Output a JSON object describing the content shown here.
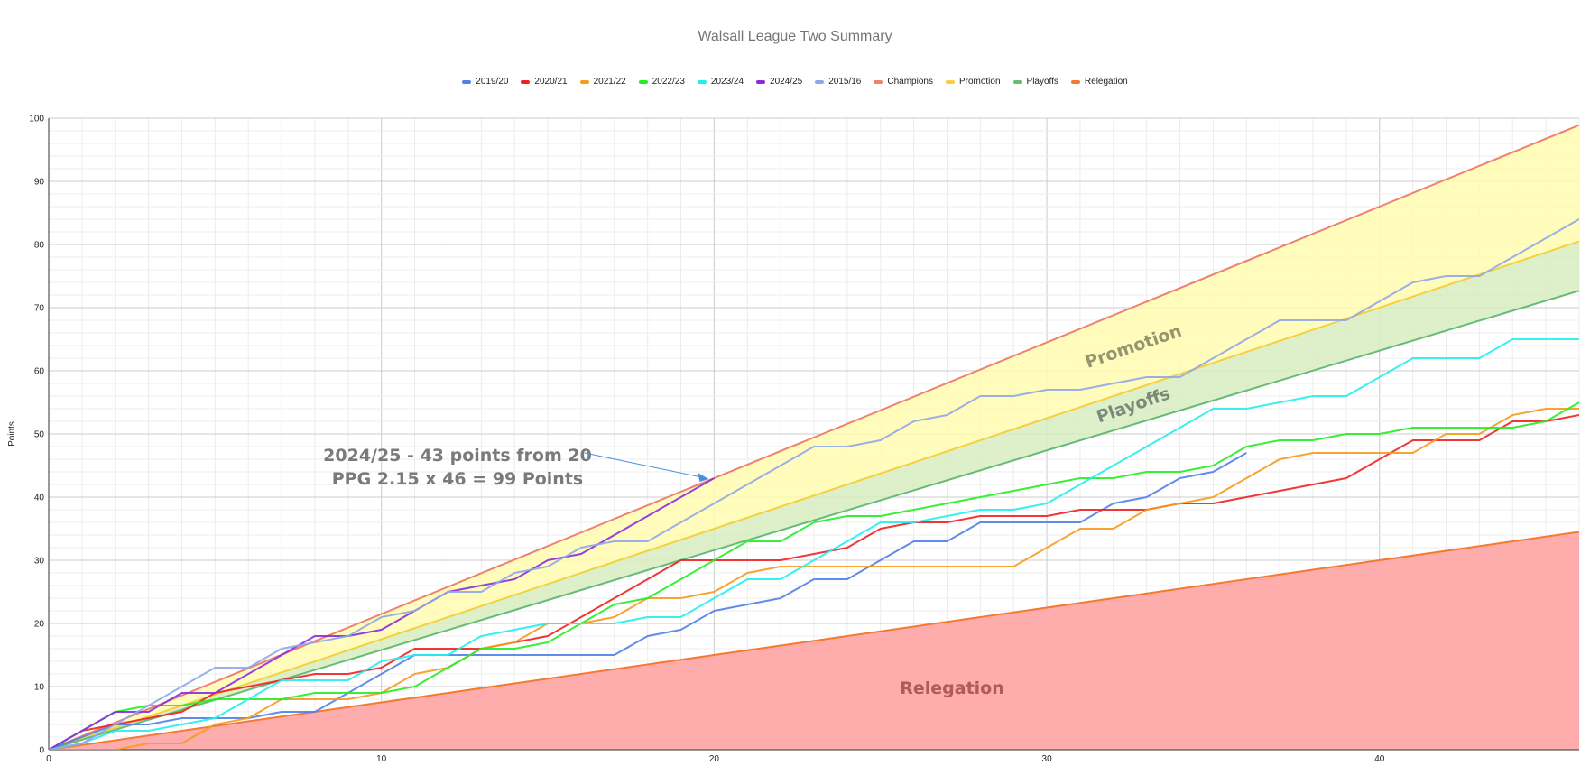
{
  "chart_data": {
    "type": "line",
    "title": "Walsall League Two Summary",
    "ylabel": "Points",
    "xlabel": "",
    "xlim": [
      0,
      46
    ],
    "ylim": [
      0,
      100
    ],
    "x_ticks": [
      0,
      10,
      20,
      30,
      40
    ],
    "y_ticks": [
      0,
      10,
      20,
      30,
      40,
      50,
      60,
      70,
      80,
      90,
      100
    ],
    "grid": true,
    "legend_position": "top",
    "series": [
      {
        "name": "2019/20",
        "color": "#4f81e8",
        "values": [
          0,
          2,
          4,
          4,
          5,
          5,
          5,
          6,
          6,
          9,
          12,
          15,
          15,
          15,
          15,
          15,
          15,
          15,
          18,
          19,
          22,
          23,
          24,
          27,
          27,
          30,
          33,
          33,
          36,
          36,
          36,
          36,
          39,
          40,
          43,
          44,
          47
        ]
      },
      {
        "name": "2020/21",
        "color": "#ee2222",
        "values": [
          0,
          3,
          4,
          5,
          6,
          9,
          10,
          11,
          12,
          12,
          13,
          16,
          16,
          16,
          17,
          18,
          21,
          24,
          27,
          30,
          30,
          30,
          30,
          31,
          32,
          35,
          36,
          36,
          37,
          37,
          37,
          38,
          38,
          38,
          39,
          39,
          40,
          41,
          42,
          43,
          46,
          49,
          49,
          49,
          52,
          52,
          53
        ]
      },
      {
        "name": "2021/22",
        "color": "#f59b1e",
        "values": [
          0,
          0,
          0,
          1,
          1,
          4,
          5,
          8,
          8,
          8,
          9,
          12,
          13,
          16,
          17,
          20,
          20,
          21,
          24,
          24,
          25,
          28,
          29,
          29,
          29,
          29,
          29,
          29,
          29,
          29,
          32,
          35,
          35,
          38,
          39,
          40,
          43,
          46,
          47,
          47,
          47,
          47,
          50,
          50,
          53,
          54,
          54
        ]
      },
      {
        "name": "2022/23",
        "color": "#22ee22",
        "values": [
          0,
          3,
          6,
          7,
          7,
          8,
          8,
          8,
          9,
          9,
          9,
          10,
          13,
          16,
          16,
          17,
          20,
          23,
          24,
          27,
          30,
          33,
          33,
          36,
          37,
          37,
          38,
          39,
          40,
          41,
          42,
          43,
          43,
          44,
          44,
          45,
          48,
          49,
          49,
          50,
          50,
          51,
          51,
          51,
          51,
          52,
          55
        ]
      },
      {
        "name": "2023/24",
        "color": "#22eeee",
        "values": [
          0,
          1,
          3,
          3,
          4,
          5,
          8,
          11,
          11,
          11,
          14,
          15,
          15,
          18,
          19,
          20,
          20,
          20,
          21,
          21,
          24,
          27,
          27,
          30,
          33,
          36,
          36,
          37,
          38,
          38,
          39,
          42,
          45,
          48,
          51,
          54,
          54,
          55,
          56,
          56,
          59,
          62,
          62,
          62,
          65,
          65,
          65
        ]
      },
      {
        "name": "2024/25",
        "color": "#8a2be2",
        "values": [
          0,
          3,
          6,
          6,
          9,
          9,
          12,
          15,
          18,
          18,
          19,
          22,
          25,
          26,
          27,
          30,
          31,
          34,
          37,
          40,
          43
        ]
      },
      {
        "name": "2015/16",
        "color": "#8fa7e8",
        "values": [
          0,
          1,
          4,
          7,
          10,
          13,
          13,
          16,
          17,
          18,
          21,
          22,
          25,
          25,
          28,
          29,
          32,
          33,
          33,
          36,
          39,
          42,
          45,
          48,
          48,
          49,
          52,
          53,
          56,
          56,
          57,
          57,
          58,
          59,
          59,
          62,
          65,
          68,
          68,
          68,
          71,
          74,
          75,
          75,
          78,
          81,
          84
        ]
      }
    ],
    "bands": [
      {
        "name": "Champions",
        "color": "#f08070",
        "ppg": 2.15
      },
      {
        "name": "Promotion",
        "color": "#f5d040",
        "ppg": 1.75
      },
      {
        "name": "Playoffs",
        "color": "#66bb77",
        "ppg": 1.58
      },
      {
        "name": "Relegation",
        "color": "#f57a30",
        "ppg": 0.75
      }
    ],
    "annotations": [
      {
        "text": "2024/25 - 43 points from 20",
        "line2": "PPG 2.15 x 46 = 99 Points",
        "target_x": 20,
        "target_y": 43
      },
      {
        "text": "Promotion"
      },
      {
        "text": "Playoffs"
      },
      {
        "text": "Relegation"
      }
    ]
  }
}
